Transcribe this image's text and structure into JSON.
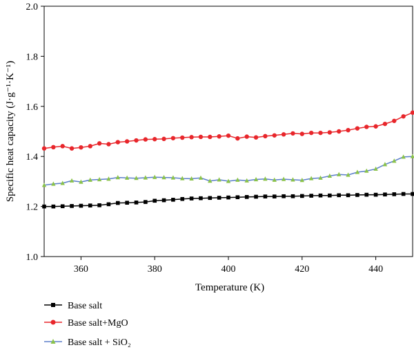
{
  "chart_data": {
    "type": "line",
    "title": "",
    "xlabel": "Temperature (K)",
    "ylabel": "Specific heat capacity (J·g⁻¹·K⁻¹)",
    "xlim": [
      350,
      450
    ],
    "ylim": [
      1.0,
      2.0
    ],
    "xticks": [
      360,
      380,
      400,
      420,
      440
    ],
    "yticks": [
      1.0,
      1.2,
      1.4,
      1.6,
      1.8,
      2.0
    ],
    "xtick_labels": [
      "360",
      "380",
      "400",
      "420",
      "440"
    ],
    "ytick_labels": [
      "1.0",
      "1.2",
      "1.4",
      "1.6",
      "1.8",
      "2.0"
    ],
    "grid": false,
    "legend_position": "below-left",
    "x": [
      350,
      352.5,
      355,
      357.5,
      360,
      362.5,
      365,
      367.5,
      370,
      372.5,
      375,
      377.5,
      380,
      382.5,
      385,
      387.5,
      390,
      392.5,
      395,
      397.5,
      400,
      402.5,
      405,
      407.5,
      410,
      412.5,
      415,
      417.5,
      420,
      422.5,
      425,
      427.5,
      430,
      432.5,
      435,
      437.5,
      440,
      442.5,
      445,
      447.5,
      450
    ],
    "series": [
      {
        "name": "Base salt",
        "color": "#000000",
        "marker": "square",
        "values": [
          1.2,
          1.2,
          1.201,
          1.202,
          1.203,
          1.204,
          1.205,
          1.209,
          1.214,
          1.215,
          1.216,
          1.218,
          1.223,
          1.225,
          1.227,
          1.23,
          1.232,
          1.233,
          1.234,
          1.235,
          1.236,
          1.237,
          1.238,
          1.239,
          1.24,
          1.24,
          1.241,
          1.241,
          1.242,
          1.243,
          1.244,
          1.244,
          1.245,
          1.245,
          1.246,
          1.247,
          1.247,
          1.248,
          1.249,
          1.25,
          1.25
        ]
      },
      {
        "name": "Base salt+MgO",
        "color": "#e8262b",
        "marker": "circle",
        "values": [
          1.432,
          1.437,
          1.441,
          1.432,
          1.436,
          1.441,
          1.452,
          1.449,
          1.457,
          1.46,
          1.464,
          1.468,
          1.469,
          1.47,
          1.473,
          1.475,
          1.477,
          1.478,
          1.478,
          1.48,
          1.483,
          1.472,
          1.479,
          1.476,
          1.481,
          1.484,
          1.488,
          1.492,
          1.49,
          1.494,
          1.494,
          1.496,
          1.5,
          1.505,
          1.512,
          1.518,
          1.52,
          1.53,
          1.542,
          1.56,
          1.575
        ]
      },
      {
        "name": "Base salt + SiO₂",
        "color": "#5b7fc9",
        "marker_color": "#8bc34a",
        "marker": "triangle",
        "values": [
          1.285,
          1.29,
          1.293,
          1.303,
          1.298,
          1.306,
          1.308,
          1.31,
          1.316,
          1.314,
          1.313,
          1.315,
          1.317,
          1.316,
          1.315,
          1.312,
          1.311,
          1.314,
          1.302,
          1.307,
          1.301,
          1.306,
          1.303,
          1.308,
          1.31,
          1.306,
          1.309,
          1.307,
          1.305,
          1.312,
          1.314,
          1.322,
          1.328,
          1.326,
          1.337,
          1.342,
          1.35,
          1.368,
          1.382,
          1.398,
          1.4
        ]
      }
    ]
  }
}
